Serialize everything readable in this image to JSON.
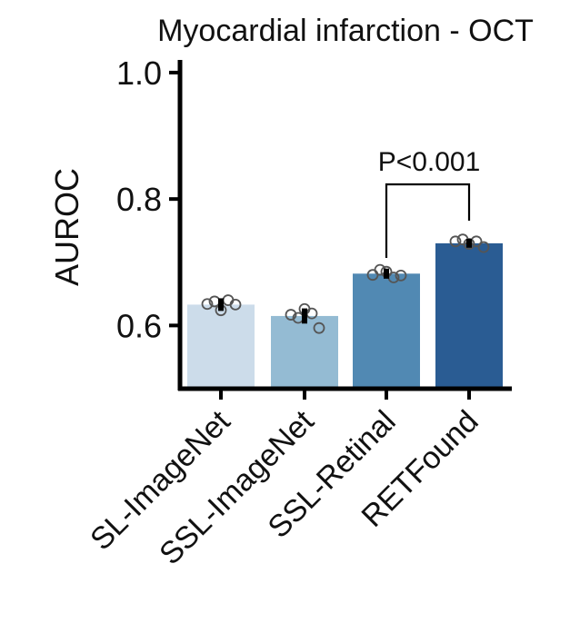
{
  "chart_data": {
    "type": "bar",
    "title": "Myocardial infarction - OCT",
    "xlabel": "",
    "ylabel": "AUROC",
    "ylim": [
      0.5,
      1.02
    ],
    "yticks": [
      "0.6",
      "0.8",
      "1.0"
    ],
    "categories": [
      "SL-ImageNet",
      "SSL-ImageNet",
      "SSL-Retinal",
      "RETFound"
    ],
    "values": [
      0.633,
      0.615,
      0.682,
      0.73
    ],
    "errors": [
      0.01,
      0.012,
      0.008,
      0.007
    ],
    "points": [
      [
        0.634,
        0.638,
        0.624,
        0.64,
        0.633
      ],
      [
        0.617,
        0.612,
        0.626,
        0.619,
        0.596
      ],
      [
        0.68,
        0.688,
        0.685,
        0.676,
        0.679
      ],
      [
        0.733,
        0.736,
        0.729,
        0.733,
        0.724
      ]
    ],
    "colors": [
      "#ccdcea",
      "#94bbd3",
      "#5189b3",
      "#2a5c93"
    ],
    "annotation": {
      "text": "P<0.001",
      "from": "SSL-Retinal",
      "to": "RETFound"
    },
    "grid": false,
    "legend": "none"
  }
}
